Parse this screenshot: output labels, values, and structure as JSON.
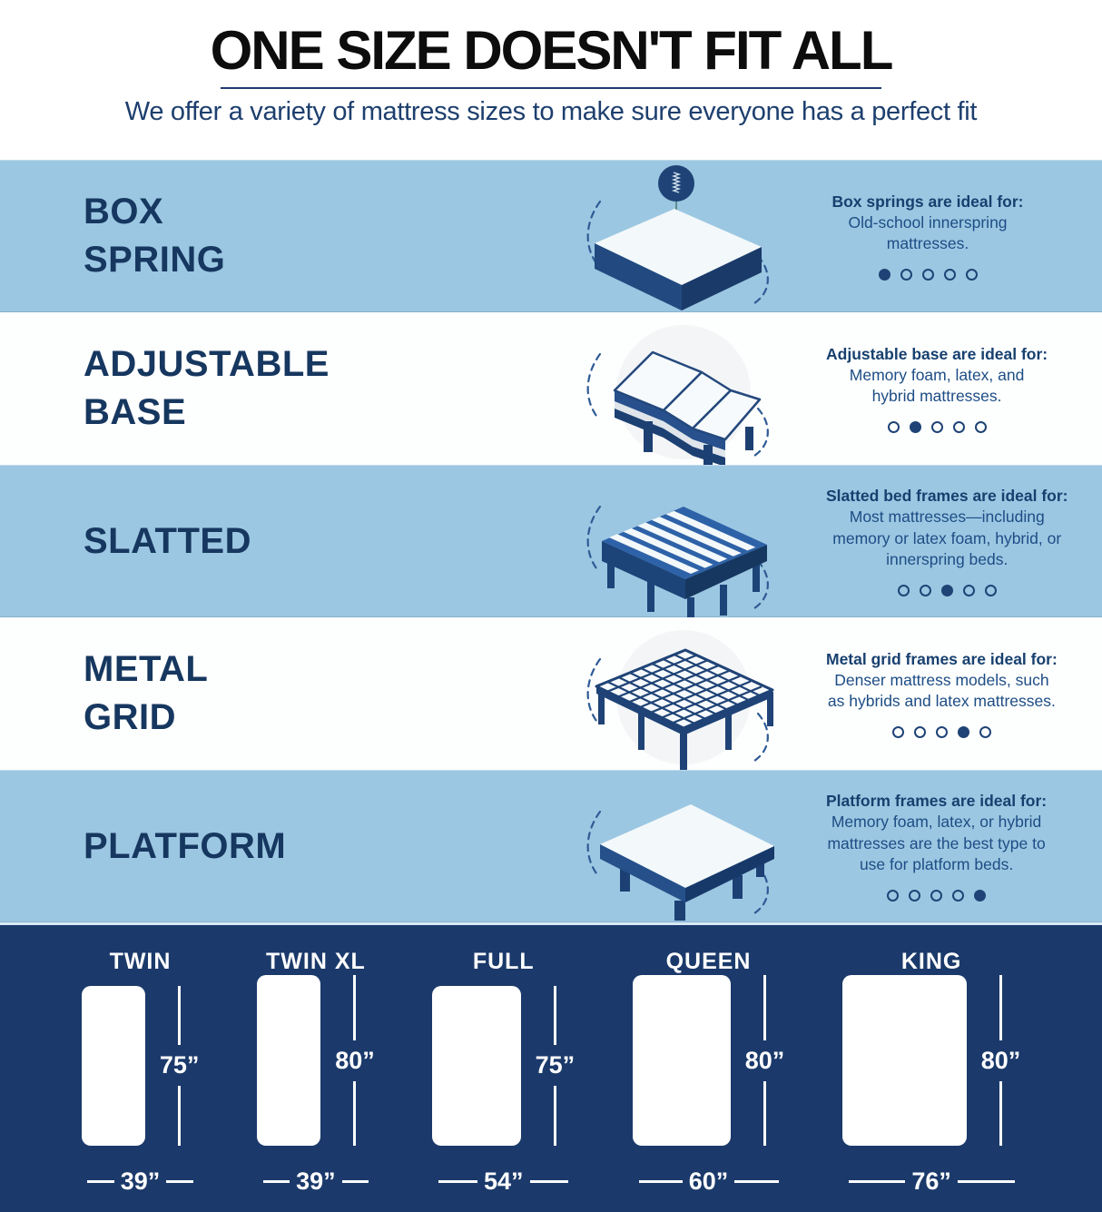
{
  "header": {
    "title": "ONE SIZE DOESN'T FIT ALL",
    "subtitle": "We offer a variety of mattress sizes to make sure everyone has a perfect fit"
  },
  "colors": {
    "row_light_blue": "#9cc7e2",
    "row_white": "#fdfefe",
    "footer_navy": "#1b3a6b",
    "heading_navy": "#16375f",
    "body_text_blue": "#1d4d85",
    "dot_navy": "#1f4376",
    "title_black": "#0d0d0d",
    "white": "#ffffff"
  },
  "dots_total": 5,
  "bases": [
    {
      "icon": "box-spring-icon",
      "name_line1": "BOX",
      "name_line2": "SPRING",
      "ideal_title": "Box springs are ideal for:",
      "ideal_text": "Old-school innerspring mattresses.",
      "active_dot": 0
    },
    {
      "icon": "adjustable-base-icon",
      "name_line1": "ADJUSTABLE",
      "name_line2": "BASE",
      "ideal_title": "Adjustable base are ideal for:",
      "ideal_text": "Memory foam, latex, and hybrid mattresses.",
      "active_dot": 1
    },
    {
      "icon": "slatted-frame-icon",
      "name_line1": "SLATTED",
      "name_line2": "",
      "ideal_title": "Slatted bed frames are ideal for:",
      "ideal_text": "Most mattresses—including memory or latex foam, hybrid, or innerspring beds.",
      "active_dot": 2
    },
    {
      "icon": "metal-grid-icon",
      "name_line1": "METAL",
      "name_line2": "GRID",
      "ideal_title": "Metal grid frames are ideal for:",
      "ideal_text": "Denser mattress models, such as hybrids and latex mattresses.",
      "active_dot": 3
    },
    {
      "icon": "platform-icon",
      "name_line1": "PLATFORM",
      "name_line2": "",
      "ideal_title": "Platform frames are ideal for:",
      "ideal_text": "Memory foam, latex, or hybrid mattresses are the best type to use for platform beds.",
      "active_dot": 4
    }
  ],
  "sizes": [
    {
      "name": "TWIN",
      "width_in": 39,
      "height_in": 75,
      "width_label": "39”",
      "height_label": "75”"
    },
    {
      "name": "TWIN XL",
      "width_in": 39,
      "height_in": 80,
      "width_label": "39”",
      "height_label": "80”"
    },
    {
      "name": "FULL",
      "width_in": 54,
      "height_in": 75,
      "width_label": "54”",
      "height_label": "75”"
    },
    {
      "name": "QUEEN",
      "width_in": 60,
      "height_in": 80,
      "width_label": "60”",
      "height_label": "80”"
    },
    {
      "name": "KING",
      "width_in": 76,
      "height_in": 80,
      "width_label": "76”",
      "height_label": "80”"
    }
  ]
}
